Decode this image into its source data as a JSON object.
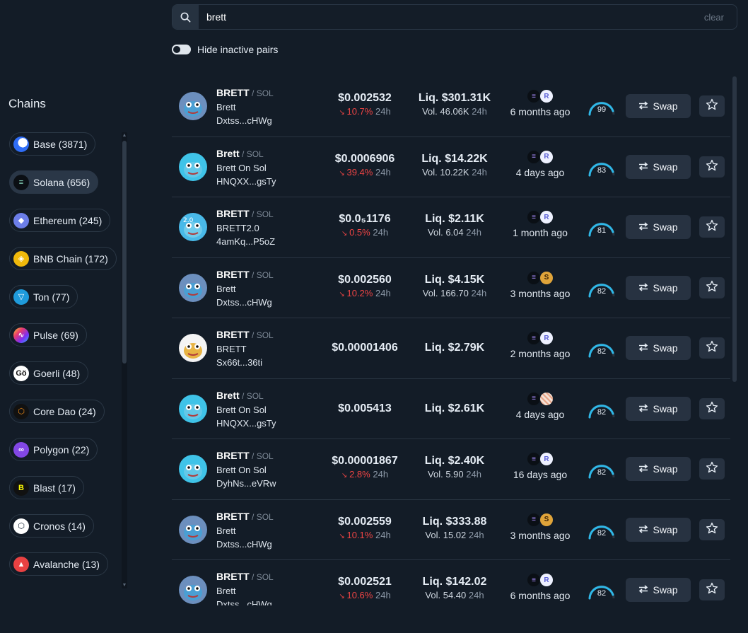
{
  "search": {
    "value": "brett",
    "clear_label": "clear"
  },
  "toggle": {
    "label": "Hide inactive pairs"
  },
  "sidebar": {
    "title": "Chains",
    "chains": [
      {
        "label": "Base (3871)",
        "icon": "base-icon",
        "color": "#2f6df6",
        "active": false
      },
      {
        "label": "Solana (656)",
        "icon": "solana-icon",
        "color": "#0b0f14",
        "active": true
      },
      {
        "label": "Ethereum (245)",
        "icon": "ethereum-icon",
        "color": "#6c7ee8",
        "active": false
      },
      {
        "label": "BNB Chain (172)",
        "icon": "bnb-icon",
        "color": "#f0b90b",
        "active": false
      },
      {
        "label": "Ton (77)",
        "icon": "ton-icon",
        "color": "#1f9bdb",
        "active": false
      },
      {
        "label": "Pulse (69)",
        "icon": "pulse-icon",
        "color": "#7b2ff7",
        "active": false
      },
      {
        "label": "Goerli (48)",
        "icon": "goerli-icon",
        "color": "#ffffff",
        "active": false
      },
      {
        "label": "Core Dao (24)",
        "icon": "coredao-icon",
        "color": "#f08a16",
        "active": false
      },
      {
        "label": "Polygon (22)",
        "icon": "polygon-icon",
        "color": "#8247e5",
        "active": false
      },
      {
        "label": "Blast (17)",
        "icon": "blast-icon",
        "color": "#fcfc03",
        "active": false
      },
      {
        "label": "Cronos (14)",
        "icon": "cronos-icon",
        "color": "#0a1a2b",
        "active": false
      },
      {
        "label": "Avalanche (13)",
        "icon": "avalanche-icon",
        "color": "#e84142",
        "active": false
      }
    ]
  },
  "swap_label": "Swap",
  "h24": "24h",
  "rows": [
    {
      "symbol": "BRETT",
      "quote": "SOL",
      "name": "Brett",
      "addr": "Dxtss...cHWg",
      "price": "$0.002532",
      "change": "10.7%",
      "liq": "Liq. $301.31K",
      "vol": "Vol. 46.06K",
      "dex2": "ray",
      "age": "6 months ago",
      "score": "99",
      "avatar": "pepe-blue"
    },
    {
      "symbol": "Brett",
      "quote": "SOL",
      "name": "Brett On Sol",
      "addr": "HNQXX...gsTy",
      "price": "$0.0006906",
      "change": "39.4%",
      "liq": "Liq. $14.22K",
      "vol": "Vol. 10.22K",
      "dex2": "ray",
      "age": "4 days ago",
      "score": "83",
      "avatar": "pepe-cyan"
    },
    {
      "symbol": "BRETT",
      "quote": "SOL",
      "name": "BRETT2.0",
      "addr": "4amKq...P5oZ",
      "price": "$0.0₅1176",
      "change": "0.5%",
      "liq": "Liq. $2.11K",
      "vol": "Vol. 6.04",
      "dex2": "ray",
      "age": "1 month ago",
      "score": "81",
      "avatar": "pepe-2"
    },
    {
      "symbol": "BRETT",
      "quote": "SOL",
      "name": "Brett",
      "addr": "Dxtss...cHWg",
      "price": "$0.002560",
      "change": "10.2%",
      "liq": "Liq. $4.15K",
      "vol": "Vol. 166.70",
      "dex2": "gold",
      "age": "3 months ago",
      "score": "82",
      "avatar": "pepe-blue"
    },
    {
      "symbol": "BRETT",
      "quote": "SOL",
      "name": "BRETT",
      "addr": "Sx66t...36ti",
      "price": "$0.00001406",
      "change": "",
      "liq": "Liq. $2.79K",
      "vol": "",
      "dex2": "ray",
      "age": "2 months ago",
      "score": "82",
      "avatar": "pepe-white"
    },
    {
      "symbol": "Brett",
      "quote": "SOL",
      "name": "Brett On Sol",
      "addr": "HNQXX...gsTy",
      "price": "$0.005413",
      "change": "",
      "liq": "Liq. $2.61K",
      "vol": "",
      "dex2": "stripe",
      "age": "4 days ago",
      "score": "82",
      "avatar": "pepe-cyan"
    },
    {
      "symbol": "BRETT",
      "quote": "SOL",
      "name": "Brett On Sol",
      "addr": "DyhNs...eVRw",
      "price": "$0.00001867",
      "change": "2.8%",
      "liq": "Liq. $2.40K",
      "vol": "Vol. 5.90",
      "dex2": "ray",
      "age": "16 days ago",
      "score": "82",
      "avatar": "pepe-cyan"
    },
    {
      "symbol": "BRETT",
      "quote": "SOL",
      "name": "Brett",
      "addr": "Dxtss...cHWg",
      "price": "$0.002559",
      "change": "10.1%",
      "liq": "Liq. $333.88",
      "vol": "Vol. 15.02",
      "dex2": "gold",
      "age": "3 months ago",
      "score": "82",
      "avatar": "pepe-blue"
    },
    {
      "symbol": "BRETT",
      "quote": "SOL",
      "name": "Brett",
      "addr": "Dxtss...cHWg",
      "price": "$0.002521",
      "change": "10.6%",
      "liq": "Liq. $142.02",
      "vol": "Vol. 54.40",
      "dex2": "ray",
      "age": "6 months ago",
      "score": "82",
      "avatar": "pepe-blue"
    }
  ]
}
